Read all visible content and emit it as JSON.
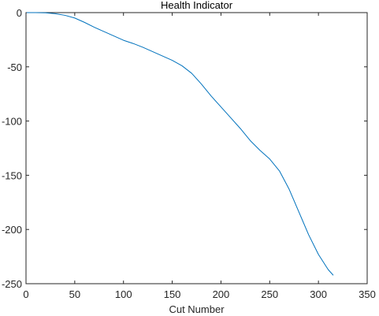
{
  "chart_data": {
    "type": "line",
    "title": "Health Indicator",
    "xlabel": "Cut Number",
    "ylabel": "",
    "xlim": [
      0,
      350
    ],
    "ylim": [
      -250,
      0
    ],
    "xticks": [
      0,
      50,
      100,
      150,
      200,
      250,
      300,
      350
    ],
    "yticks": [
      0,
      -50,
      -100,
      -150,
      -200,
      -250
    ],
    "xtick_labels": [
      "0",
      "50",
      "100",
      "150",
      "200",
      "250",
      "300",
      "350"
    ],
    "ytick_labels": [
      "0",
      "-50",
      "-100",
      "-150",
      "-200",
      "-250"
    ],
    "grid": false,
    "series": [
      {
        "color": "#0072BD",
        "x": [
          1,
          10,
          20,
          30,
          40,
          50,
          60,
          70,
          80,
          90,
          100,
          110,
          120,
          130,
          140,
          150,
          160,
          170,
          180,
          190,
          200,
          210,
          220,
          230,
          240,
          250,
          260,
          270,
          280,
          290,
          300,
          310,
          315
        ],
        "y": [
          0,
          0,
          -0.2,
          -1,
          -2.5,
          -5,
          -9,
          -13.5,
          -17.5,
          -21.5,
          -25.5,
          -28.5,
          -32,
          -36,
          -40,
          -44,
          -49,
          -56,
          -66,
          -77,
          -87,
          -97,
          -107,
          -118,
          -127,
          -135,
          -146,
          -163,
          -184,
          -205,
          -223,
          -237,
          -242
        ]
      }
    ]
  }
}
